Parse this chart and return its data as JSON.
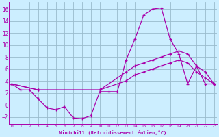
{
  "xlabel": "Windchill (Refroidissement éolien,°C)",
  "bg_color": "#cceeff",
  "line_color": "#aa00aa",
  "grid_color": "#99bbcc",
  "x_ticks": [
    0,
    1,
    2,
    3,
    4,
    5,
    6,
    7,
    8,
    9,
    10,
    11,
    12,
    13,
    14,
    15,
    16,
    17,
    18,
    19,
    20,
    21,
    22,
    23
  ],
  "y_ticks": [
    -2,
    0,
    2,
    4,
    6,
    8,
    10,
    12,
    14,
    16
  ],
  "xlim": [
    -0.3,
    23.3
  ],
  "ylim": [
    -3.2,
    17.2
  ],
  "line1_x": [
    0,
    1,
    2,
    3,
    4,
    5,
    6,
    7,
    8,
    9,
    10,
    11,
    12,
    13,
    14,
    15,
    16,
    17,
    18,
    19,
    20,
    21,
    22,
    23
  ],
  "line1_y": [
    3.5,
    2.5,
    2.5,
    1.0,
    -0.5,
    -0.8,
    -0.3,
    -2.2,
    -2.3,
    -1.8,
    2.2,
    2.2,
    2.2,
    7.5,
    11.0,
    15.0,
    16.0,
    16.2,
    11.0,
    8.5,
    3.5,
    6.5,
    3.5,
    3.5
  ],
  "line2_x": [
    0,
    3,
    10,
    13,
    14,
    15,
    16,
    17,
    18,
    19,
    20,
    21,
    22,
    23
  ],
  "line2_y": [
    3.5,
    2.5,
    2.5,
    5.5,
    6.5,
    7.0,
    7.5,
    8.0,
    8.5,
    9.0,
    8.5,
    6.5,
    5.5,
    3.5
  ],
  "line3_x": [
    0,
    3,
    10,
    13,
    14,
    15,
    16,
    17,
    18,
    19,
    20,
    21,
    22,
    23
  ],
  "line3_y": [
    3.5,
    2.5,
    2.5,
    4.0,
    5.0,
    5.5,
    6.0,
    6.5,
    7.0,
    7.5,
    7.0,
    5.5,
    4.5,
    3.5
  ]
}
